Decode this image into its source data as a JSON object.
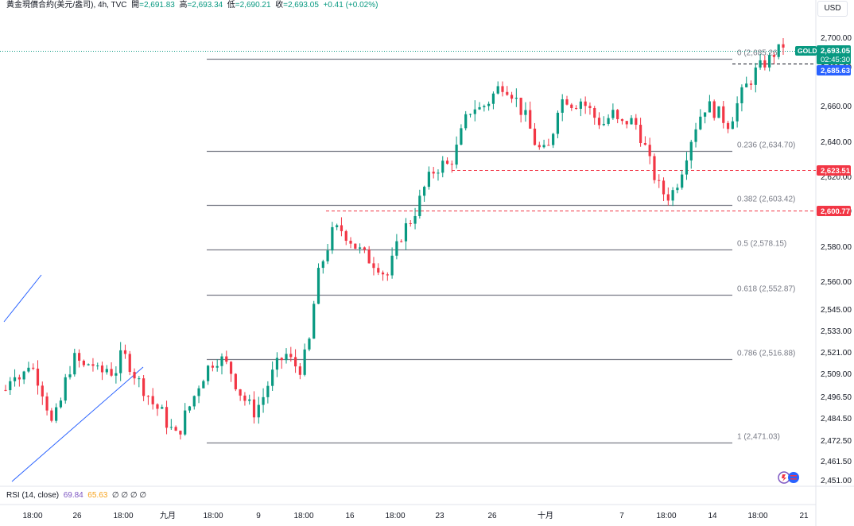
{
  "header": {
    "symbol": "黃金現價合約(美元/盎司)",
    "interval": "4h",
    "source": "TVC",
    "open_label": "開",
    "open": "2,691.83",
    "high_label": "高",
    "high": "2,693.34",
    "low_label": "低",
    "low": "2,690.21",
    "close_label": "收",
    "close": "2,693.05",
    "change": "+0.41",
    "change_pct": "(+0.02%)"
  },
  "currency_button": "USD",
  "price_tags": {
    "symbol_tag": "GOLD",
    "last_price": "2,693.05",
    "countdown": "02:45:30",
    "blue_level": "2,685.63",
    "red_level_1": "2,623.51",
    "red_level_2": "2,600.77"
  },
  "rsi": {
    "label": "RSI (14, close)",
    "value1": "69.84",
    "value2": "65.63",
    "extra": "∅ ∅ ∅ ∅"
  },
  "colors": {
    "up": "#089981",
    "down": "#f23645",
    "blue": "#2962ff",
    "fib_line": "#787b86",
    "dashed_red": "#f23645"
  },
  "chart_data": {
    "type": "candlestick",
    "price_axis": [
      "2,700.00",
      "2,680.00",
      "2,660.00",
      "2,640.00",
      "2,620.00",
      "2,600.00",
      "2,580.00",
      "2,560.00",
      "2,545.00",
      "2,533.00",
      "2,521.00",
      "2,509.00",
      "2,496.50",
      "2,484.50",
      "2,472.50",
      "2,461.50",
      "2,451.00"
    ],
    "time_axis": [
      "18:00",
      "26",
      "18:00",
      "九月",
      "18:00",
      "9",
      "18:00",
      "16",
      "18:00",
      "23",
      "26",
      "十月",
      "7",
      "18:00",
      "14",
      "18:00",
      "21"
    ],
    "fibonacci": [
      {
        "ratio": "0",
        "label": "0 (2,685.26)",
        "price": 2685.26
      },
      {
        "ratio": "0.236",
        "label": "0.236 (2,634.70)",
        "price": 2634.7
      },
      {
        "ratio": "0.382",
        "label": "0.382 (2,603.42)",
        "price": 2603.42
      },
      {
        "ratio": "0.5",
        "label": "0.5 (2,578.15)",
        "price": 2578.15
      },
      {
        "ratio": "0.618",
        "label": "0.618 (2,552.87)",
        "price": 2552.87
      },
      {
        "ratio": "0.786",
        "label": "0.786 (2,516.88)",
        "price": 2516.88
      },
      {
        "ratio": "1",
        "label": "1 (2,471.03)",
        "price": 2471.03
      }
    ],
    "close_path": [
      2500,
      2512,
      2505,
      2515,
      2508,
      2497,
      2480,
      2492,
      2510,
      2518,
      2512,
      2516,
      2508,
      2512,
      2509,
      2520,
      2514,
      2505,
      2500,
      2492,
      2488,
      2480,
      2474,
      2485,
      2494,
      2505,
      2512,
      2518,
      2516,
      2510,
      2500,
      2493,
      2488,
      2495,
      2506,
      2514,
      2520,
      2514,
      2512,
      2525,
      2560,
      2575,
      2587,
      2590,
      2586,
      2580,
      2575,
      2572,
      2569,
      2562,
      2575,
      2588,
      2594,
      2603,
      2615,
      2623,
      2627,
      2626,
      2636,
      2650,
      2660,
      2658,
      2662,
      2667,
      2672,
      2668,
      2660,
      2652,
      2640,
      2633,
      2637,
      2660,
      2665,
      2661,
      2663,
      2658,
      2652,
      2650,
      2656,
      2648,
      2652,
      2650,
      2640,
      2625,
      2614,
      2608,
      2612,
      2625,
      2640,
      2652,
      2660,
      2658,
      2654,
      2650,
      2660,
      2668,
      2675,
      2680,
      2684,
      2690,
      2693.05
    ],
    "ylim": [
      2451,
      2705
    ]
  }
}
